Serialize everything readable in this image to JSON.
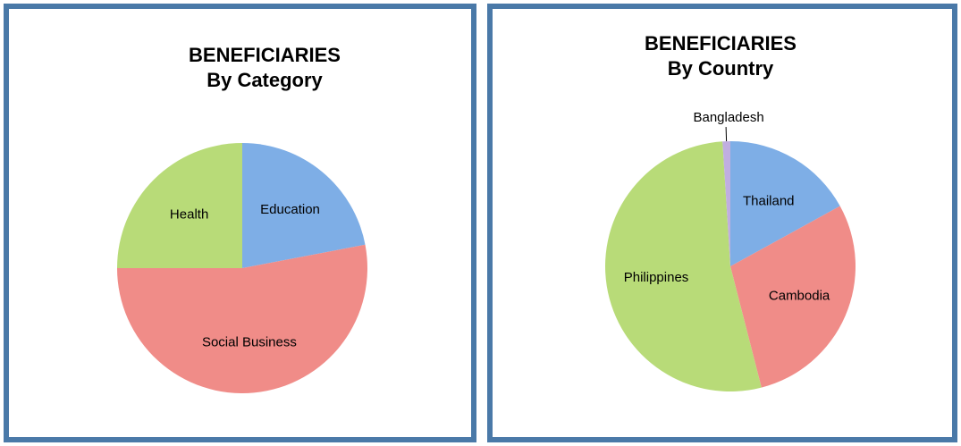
{
  "chart_data": [
    {
      "type": "pie",
      "title": [
        "BENEFICIARIES",
        "By Category"
      ],
      "categories": [
        "Education",
        "Social Business",
        "Health"
      ],
      "values": [
        22,
        53,
        25
      ],
      "colors": [
        "#7eaee6",
        "#f08c88",
        "#b8db78"
      ]
    },
    {
      "type": "pie",
      "title": [
        "BENEFICIARIES",
        "By Country"
      ],
      "categories": [
        "Thailand",
        "Cambodia",
        "Philippines",
        "Bangladesh"
      ],
      "values": [
        17,
        29,
        53,
        1
      ],
      "colors": [
        "#7eaee6",
        "#f08c88",
        "#b8db78",
        "#c0aee0"
      ]
    }
  ]
}
